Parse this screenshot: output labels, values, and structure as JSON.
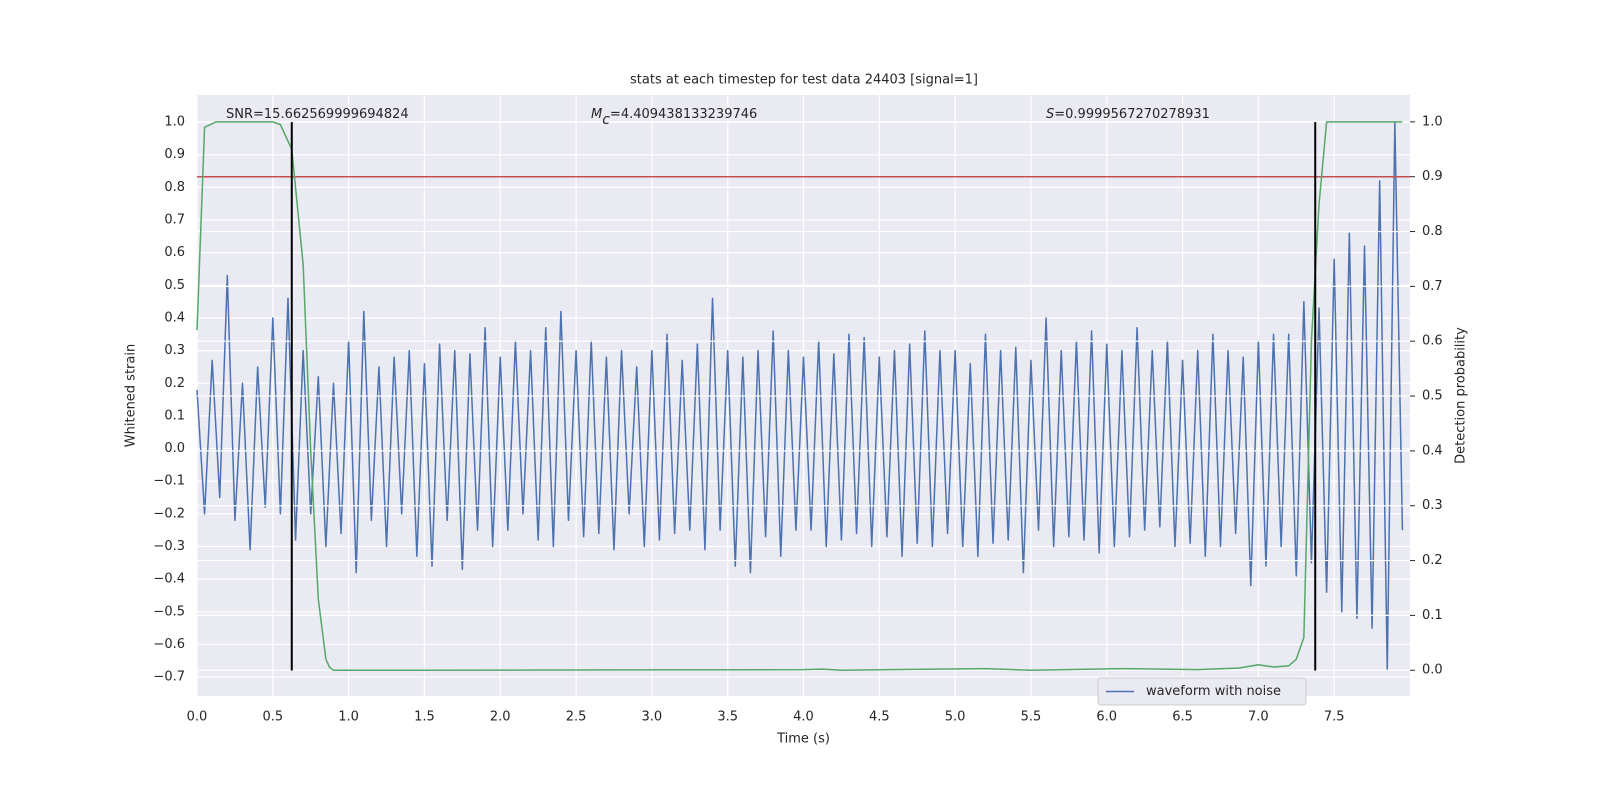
{
  "chart_data": {
    "type": "line",
    "title": "stats at each timestep for test data 24403 [signal=1]",
    "xlabel": "Time (s)",
    "ylabel": "Whitened strain",
    "y2label": "Detection probability",
    "annotations": [
      {
        "text": "SNR=15.662569999694824"
      },
      {
        "symbol": "M",
        "subscript": "c",
        "text": "=4.409438133239746"
      },
      {
        "symbol": "S",
        "text": "=0.9999567270278931"
      }
    ],
    "background": "#eaeaf2",
    "grid": true,
    "legend": "lower right",
    "xlim": [
      0,
      8.0
    ],
    "ylim": [
      -0.758,
      1.083
    ],
    "y2lim": [
      -0.047,
      1.049
    ],
    "xticks": [
      {
        "value": 0,
        "label": "0.0"
      },
      {
        "value": 0.5,
        "label": "0.5"
      },
      {
        "value": 1,
        "label": "1.0"
      },
      {
        "value": 1.5,
        "label": "1.5"
      },
      {
        "value": 2,
        "label": "2.0"
      },
      {
        "value": 2.5,
        "label": "2.5"
      },
      {
        "value": 3,
        "label": "3.0"
      },
      {
        "value": 3.5,
        "label": "3.5"
      },
      {
        "value": 4,
        "label": "4.0"
      },
      {
        "value": 4.5,
        "label": "4.5"
      },
      {
        "value": 5,
        "label": "5.0"
      },
      {
        "value": 5.5,
        "label": "5.5"
      },
      {
        "value": 6,
        "label": "6.0"
      },
      {
        "value": 6.5,
        "label": "6.5"
      },
      {
        "value": 7,
        "label": "7.0"
      },
      {
        "value": 7.5,
        "label": "7.5"
      }
    ],
    "yticks": [
      {
        "value": -0.7,
        "label": "−0.7"
      },
      {
        "value": -0.6,
        "label": "−0.6"
      },
      {
        "value": -0.5,
        "label": "−0.5"
      },
      {
        "value": -0.4,
        "label": "−0.4"
      },
      {
        "value": -0.3,
        "label": "−0.3"
      },
      {
        "value": -0.2,
        "label": "−0.2"
      },
      {
        "value": -0.1,
        "label": "−0.1"
      },
      {
        "value": 0,
        "label": "0.0"
      },
      {
        "value": 0.1,
        "label": "0.1"
      },
      {
        "value": 0.2,
        "label": "0.2"
      },
      {
        "value": 0.3,
        "label": "0.3"
      },
      {
        "value": 0.4,
        "label": "0.4"
      },
      {
        "value": 0.5,
        "label": "0.5"
      },
      {
        "value": 0.6,
        "label": "0.6"
      },
      {
        "value": 0.7,
        "label": "0.7"
      },
      {
        "value": 0.8,
        "label": "0.8"
      },
      {
        "value": 0.9,
        "label": "0.9"
      },
      {
        "value": 1,
        "label": "1.0"
      }
    ],
    "y2ticks": [
      {
        "value": 0,
        "label": "0.0"
      },
      {
        "value": 0.1,
        "label": "0.1"
      },
      {
        "value": 0.2,
        "label": "0.2"
      },
      {
        "value": 0.3,
        "label": "0.3"
      },
      {
        "value": 0.4,
        "label": "0.4"
      },
      {
        "value": 0.5,
        "label": "0.5"
      },
      {
        "value": 0.6,
        "label": "0.6"
      },
      {
        "value": 0.7,
        "label": "0.7"
      },
      {
        "value": 0.8,
        "label": "0.8"
      },
      {
        "value": 0.9,
        "label": "0.9"
      },
      {
        "value": 1,
        "label": "1.0"
      }
    ],
    "series": [
      {
        "name": "waveform with noise",
        "color": "#4c72b0",
        "x": [
          0,
          0.05,
          0.1,
          0.15,
          0.2,
          0.25,
          0.3,
          0.35,
          0.4,
          0.45,
          0.5,
          0.55,
          0.6,
          0.65,
          0.7,
          0.75,
          0.8,
          0.85,
          0.9,
          0.95,
          1,
          1.05,
          1.1,
          1.15,
          1.2,
          1.25,
          1.3,
          1.35,
          1.4,
          1.45,
          1.5,
          1.55,
          1.6,
          1.65,
          1.7,
          1.75,
          1.8,
          1.85,
          1.9,
          1.95,
          2,
          2.05,
          2.1,
          2.15,
          2.2,
          2.25,
          2.3,
          2.35,
          2.4,
          2.45,
          2.5,
          2.55,
          2.6,
          2.65,
          2.7,
          2.75,
          2.8,
          2.85,
          2.9,
          2.95,
          3,
          3.05,
          3.1,
          3.15,
          3.2,
          3.25,
          3.3,
          3.35,
          3.4,
          3.45,
          3.5,
          3.55,
          3.6,
          3.65,
          3.7,
          3.75,
          3.8,
          3.85,
          3.9,
          3.95,
          4,
          4.05,
          4.1,
          4.15,
          4.2,
          4.25,
          4.3,
          4.35,
          4.4,
          4.45,
          4.5,
          4.55,
          4.6,
          4.65,
          4.7,
          4.75,
          4.8,
          4.85,
          4.9,
          4.95,
          5,
          5.05,
          5.1,
          5.15,
          5.2,
          5.25,
          5.3,
          5.35,
          5.4,
          5.45,
          5.5,
          5.55,
          5.6,
          5.65,
          5.7,
          5.75,
          5.8,
          5.85,
          5.9,
          5.95,
          6,
          6.05,
          6.1,
          6.15,
          6.2,
          6.25,
          6.3,
          6.35,
          6.4,
          6.45,
          6.5,
          6.55,
          6.6,
          6.65,
          6.7,
          6.75,
          6.8,
          6.85,
          6.9,
          6.95,
          7,
          7.05,
          7.1,
          7.15,
          7.2,
          7.25,
          7.3,
          7.35,
          7.4,
          7.45,
          7.5,
          7.55,
          7.6,
          7.65,
          7.7,
          7.75,
          7.8,
          7.85,
          7.9,
          7.95
        ],
        "values": [
          0.18,
          -0.2,
          0.27,
          -0.15,
          0.53,
          -0.22,
          0.2,
          -0.31,
          0.25,
          -0.18,
          0.4,
          -0.2,
          0.46,
          -0.28,
          0.3,
          -0.2,
          0.22,
          -0.3,
          0.2,
          -0.26,
          0.33,
          -0.38,
          0.42,
          -0.22,
          0.25,
          -0.3,
          0.28,
          -0.2,
          0.3,
          -0.33,
          0.26,
          -0.36,
          0.32,
          -0.22,
          0.3,
          -0.37,
          0.29,
          -0.25,
          0.37,
          -0.3,
          0.28,
          -0.25,
          0.33,
          -0.2,
          0.3,
          -0.28,
          0.37,
          -0.3,
          0.42,
          -0.22,
          0.3,
          -0.27,
          0.33,
          -0.26,
          0.28,
          -0.31,
          0.3,
          -0.2,
          0.25,
          -0.3,
          0.3,
          -0.28,
          0.35,
          -0.26,
          0.27,
          -0.25,
          0.32,
          -0.31,
          0.46,
          -0.25,
          0.3,
          -0.36,
          0.28,
          -0.38,
          0.3,
          -0.27,
          0.36,
          -0.33,
          0.3,
          -0.25,
          0.28,
          -0.25,
          0.33,
          -0.3,
          0.29,
          -0.28,
          0.35,
          -0.26,
          0.34,
          -0.3,
          0.28,
          -0.27,
          0.3,
          -0.33,
          0.32,
          -0.29,
          0.36,
          -0.3,
          0.3,
          -0.26,
          0.3,
          -0.3,
          0.26,
          -0.33,
          0.35,
          -0.29,
          0.3,
          -0.28,
          0.31,
          -0.38,
          0.27,
          -0.25,
          0.4,
          -0.3,
          0.3,
          -0.27,
          0.33,
          -0.28,
          0.36,
          -0.32,
          0.32,
          -0.3,
          0.3,
          -0.27,
          0.37,
          -0.25,
          0.3,
          -0.24,
          0.33,
          -0.3,
          0.27,
          -0.29,
          0.3,
          -0.33,
          0.35,
          -0.3,
          0.3,
          -0.26,
          0.28,
          -0.42,
          0.33,
          -0.36,
          0.35,
          -0.3,
          0.35,
          -0.39,
          0.45,
          -0.35,
          0.43,
          -0.44,
          0.58,
          -0.5,
          0.66,
          -0.52,
          0.62,
          -0.55,
          0.82,
          -0.68,
          1.0,
          -0.25
        ]
      },
      {
        "color": "#55a868",
        "axis": "y2",
        "x": [
          0,
          0.05,
          0.125,
          0.5,
          0.55,
          0.625,
          0.7,
          0.75,
          0.8,
          0.85,
          0.875,
          0.9,
          1.5,
          4.0,
          4.125,
          4.25,
          5.2,
          5.5,
          6.1,
          6.6,
          6.875,
          7.0,
          7.1,
          7.2,
          7.25,
          7.3,
          7.35,
          7.4,
          7.45,
          7.5,
          7.95
        ],
        "values": [
          0.62,
          0.99,
          1.0,
          1.0,
          0.995,
          0.95,
          0.74,
          0.4,
          0.13,
          0.02,
          0.005,
          0.0,
          0.0,
          0.001,
          0.002,
          0.0,
          0.003,
          0.0,
          0.003,
          0.001,
          0.004,
          0.01,
          0.006,
          0.008,
          0.02,
          0.06,
          0.6,
          0.85,
          1.0,
          1.0,
          1.0
        ]
      }
    ],
    "hline": {
      "y": 0.9,
      "axis": "y2",
      "color": "#c44e52"
    },
    "vlines": {
      "x": [
        0.625,
        7.375
      ],
      "ymin": -0.68,
      "ymax": 1.0,
      "color": "#000000"
    }
  }
}
